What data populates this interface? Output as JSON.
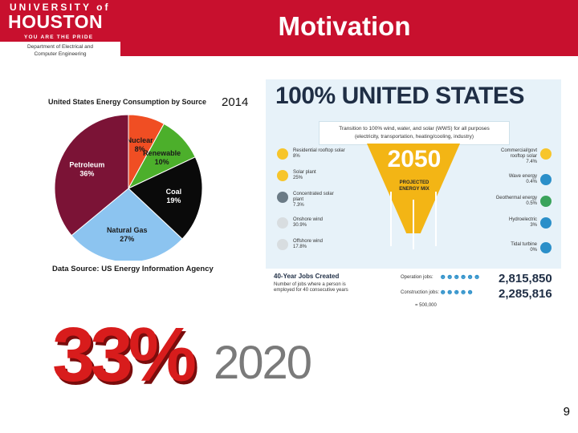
{
  "header": {
    "logo_line1": "UNIVERSITY of",
    "logo_line2": "HOUSTON",
    "logo_line3": "YOU ARE THE PRIDE",
    "dept_line1": "Department of Electrical and",
    "dept_line2": "Computer Engineering",
    "title": "Motivation",
    "brand_color": "#c8102e"
  },
  "pie_chart": {
    "title": "United States Energy Consumption by Source",
    "year": "2014",
    "source": "Data Source: US Energy Information Agency",
    "chart_data": {
      "type": "pie",
      "slices": [
        {
          "name": "Nuclear",
          "label": "8%",
          "value": 8,
          "color": "#f04e23"
        },
        {
          "name": "Renewable",
          "label": "10%",
          "value": 10,
          "color": "#4caf2b"
        },
        {
          "name": "Coal",
          "label": "19%",
          "value": 19,
          "color": "#0a0a0a"
        },
        {
          "name": "Natural Gas",
          "label": "27%",
          "value": 27,
          "color": "#8cc4f0"
        },
        {
          "name": "Petroleum",
          "label": "36%",
          "value": 36,
          "color": "#7b1336"
        }
      ]
    }
  },
  "infographic": {
    "title": "100% UNITED STATES",
    "banner_line1": "Transition to 100% wind, water, and solar (WWS) for all purposes",
    "banner_line2": "(electricity, transportation, heating/cooling, industry)",
    "year": "2050",
    "mix_line1": "PROJECTED",
    "mix_line2": "ENERGY MIX",
    "left_sources": [
      {
        "name": "Residential rooftop solar",
        "pct": "8%",
        "icon": "sun-icon"
      },
      {
        "name": "Solar plant",
        "pct": "25%",
        "icon": "sun-icon"
      },
      {
        "name": "Concentrated solar plant",
        "pct": "7.3%",
        "icon": "solar-panel-icon"
      },
      {
        "name": "Onshore wind",
        "pct": "30.9%",
        "icon": "wind-turbine-icon"
      },
      {
        "name": "Offshore wind",
        "pct": "17.8%",
        "icon": "wind-turbine-icon"
      }
    ],
    "right_sources": [
      {
        "name": "Commercial/govt rooftop solar",
        "pct": "7.4%",
        "icon": "sun-icon"
      },
      {
        "name": "Wave energy",
        "pct": "0.4%",
        "icon": "wave-icon"
      },
      {
        "name": "Geothermal energy",
        "pct": "0.5%",
        "icon": "globe-icon"
      },
      {
        "name": "Hydroelectric",
        "pct": "3%",
        "icon": "water-drop-icon"
      },
      {
        "name": "Tidal turbine",
        "pct": "0%",
        "icon": "turbine-icon"
      }
    ],
    "jobs_title": "40-Year Jobs Created",
    "jobs_desc": "Number of jobs where a person is employed for 40 consecutive years",
    "operation_label": "Operation jobs:",
    "operation_value": "2,815,850",
    "construction_label": "Construction jobs:",
    "construction_value": "2,285,816",
    "scale_label": "= 500,000"
  },
  "bottom": {
    "percent": "33%",
    "year_logo": "2020"
  },
  "page_number": "9"
}
